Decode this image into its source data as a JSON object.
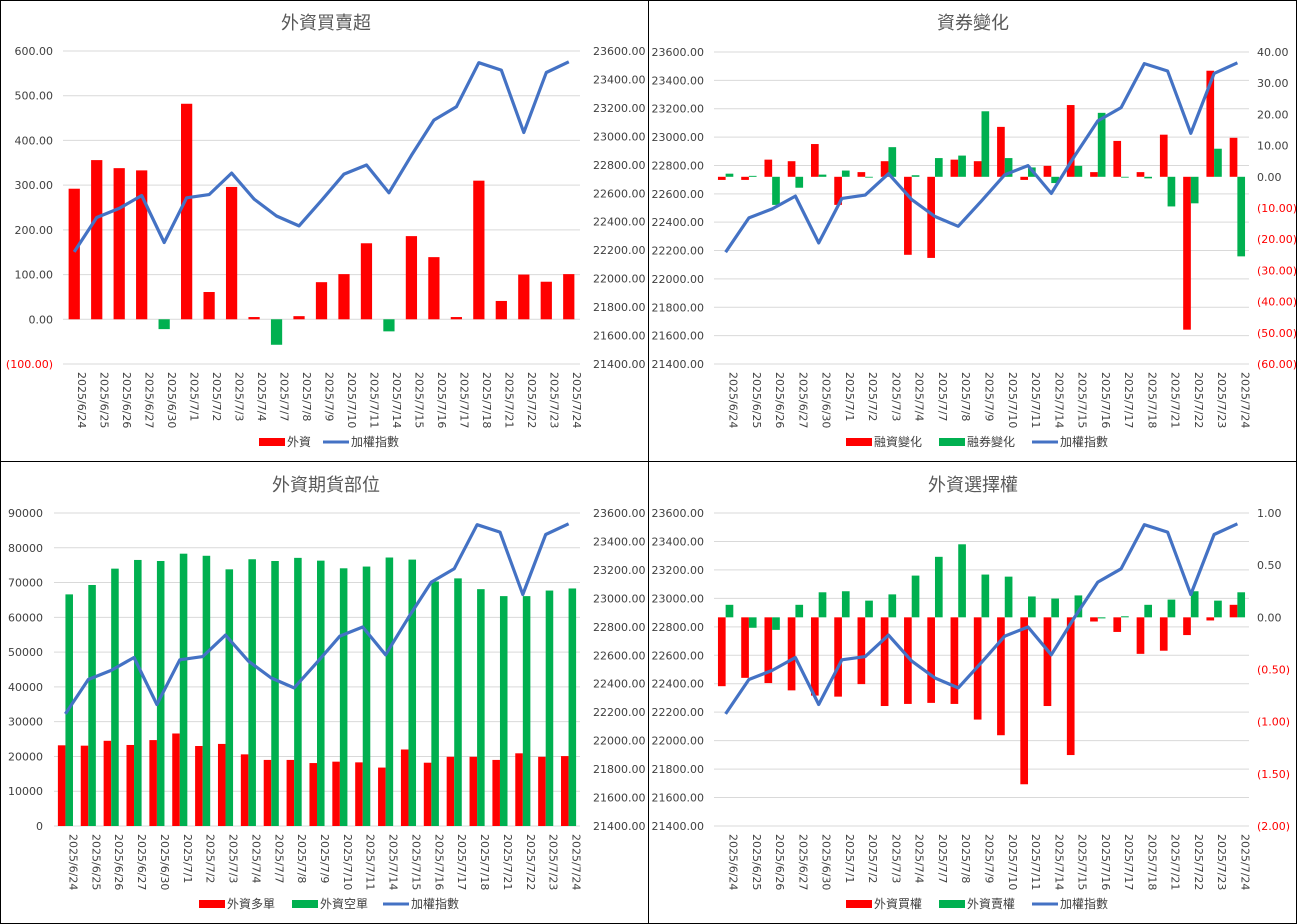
{
  "colors": {
    "red": "#ff0000",
    "green": "#00b050",
    "line": "#4472c4",
    "grid": "#d9d9d9",
    "axis": "#bfbfbf"
  },
  "categories": [
    "2025/6/24",
    "2025/6/25",
    "2025/6/26",
    "2025/6/27",
    "2025/6/30",
    "2025/7/1",
    "2025/7/2",
    "2025/7/3",
    "2025/7/4",
    "2025/7/7",
    "2025/7/8",
    "2025/7/9",
    "2025/7/10",
    "2025/7/11",
    "2025/7/14",
    "2025/7/15",
    "2025/7/16",
    "2025/7/17",
    "2025/7/18",
    "2025/7/21",
    "2025/7/22",
    "2025/7/23",
    "2025/7/24"
  ],
  "chart_data": [
    {
      "type": "bar",
      "title": "外資買賣超",
      "left_axis": {
        "min": -100,
        "max": 600,
        "step": 100,
        "ticks": [
          "(100.00)",
          "0.00",
          "100.00",
          "200.00",
          "300.00",
          "400.00",
          "500.00",
          "600.00"
        ]
      },
      "right_axis": {
        "min": 21400,
        "max": 23600,
        "step": 200,
        "ticks": [
          "21400.00",
          "21600.00",
          "21800.00",
          "22000.00",
          "22200.00",
          "22400.00",
          "22600.00",
          "22800.00",
          "23000.00",
          "23200.00",
          "23400.00",
          "23600.00"
        ]
      },
      "series": [
        {
          "name": "外資",
          "type": "bar",
          "axis": "left",
          "signColor": true,
          "values": [
            292,
            356,
            338,
            333,
            -22,
            482,
            61,
            296,
            5,
            -57,
            7,
            83,
            101,
            170,
            -27,
            186,
            139,
            5,
            310,
            41,
            100,
            84,
            101
          ]
        },
        {
          "name": "加權指數",
          "type": "line",
          "axis": "right",
          "values": [
            22188,
            22430,
            22494,
            22584,
            22254,
            22568,
            22591,
            22742,
            22559,
            22440,
            22371,
            22550,
            22735,
            22799,
            22603,
            22866,
            23114,
            23208,
            23518,
            23466,
            23027,
            23449,
            23524
          ]
        }
      ]
    },
    {
      "type": "bar",
      "title": "資券變化",
      "left_axis": {
        "min": 21400,
        "max": 23600,
        "step": 200,
        "ticks": [
          "21400.00",
          "21600.00",
          "21800.00",
          "22000.00",
          "22200.00",
          "22400.00",
          "22600.00",
          "22800.00",
          "23000.00",
          "23200.00",
          "23400.00",
          "23600.00"
        ]
      },
      "right_axis": {
        "min": -60,
        "max": 40,
        "step": 10,
        "ticks": [
          "(60.00)",
          "(50.00)",
          "(40.00)",
          "(30.00)",
          "(20.00)",
          "(10.00)",
          "0.00",
          "10.00",
          "20.00",
          "30.00",
          "40.00"
        ]
      },
      "series": [
        {
          "name": "融資變化",
          "type": "bar",
          "axis": "right",
          "color": "red",
          "values": [
            -1,
            -1,
            5.5,
            5,
            10.5,
            -9,
            1.5,
            5,
            -25,
            -26,
            5.5,
            5,
            16,
            -1,
            3.5,
            23,
            1.5,
            11.5,
            1.5,
            13.5,
            -49,
            34,
            12.5
          ]
        },
        {
          "name": "融券變化",
          "type": "bar",
          "axis": "right",
          "color": "green",
          "values": [
            1,
            0.3,
            -9,
            -3.5,
            0.7,
            2,
            0,
            9.5,
            0.5,
            6,
            6.8,
            21,
            6,
            3,
            -2,
            3.5,
            20.5,
            0,
            -0.5,
            -9.5,
            -8.5,
            9,
            -25.5
          ]
        },
        {
          "name": "加權指數",
          "type": "line",
          "axis": "left",
          "values": [
            22188,
            22430,
            22494,
            22584,
            22254,
            22568,
            22591,
            22742,
            22559,
            22440,
            22371,
            22550,
            22735,
            22799,
            22603,
            22866,
            23114,
            23208,
            23518,
            23466,
            23027,
            23449,
            23524
          ]
        }
      ]
    },
    {
      "type": "bar",
      "title": "外資期貨部位",
      "left_axis": {
        "min": 0,
        "max": 90000,
        "step": 10000,
        "ticks": [
          "0",
          "10000",
          "20000",
          "30000",
          "40000",
          "50000",
          "60000",
          "70000",
          "80000",
          "90000"
        ]
      },
      "right_axis": {
        "min": 21400,
        "max": 23600,
        "step": 200,
        "ticks": [
          "21400.00",
          "21600.00",
          "21800.00",
          "22000.00",
          "22200.00",
          "22400.00",
          "22600.00",
          "22800.00",
          "23000.00",
          "23200.00",
          "23400.00",
          "23600.00"
        ]
      },
      "series": [
        {
          "name": "外資多單",
          "type": "bar",
          "axis": "left",
          "color": "red",
          "values": [
            23200,
            23100,
            24500,
            23300,
            24700,
            26600,
            23000,
            23600,
            20600,
            19000,
            19000,
            18100,
            18500,
            18300,
            16800,
            22000,
            18200,
            19900,
            19900,
            19000,
            20900,
            19900,
            20100
          ]
        },
        {
          "name": "外資空單",
          "type": "bar",
          "axis": "left",
          "color": "green",
          "values": [
            66600,
            69300,
            74000,
            76500,
            76200,
            78300,
            77700,
            73800,
            76700,
            76200,
            77100,
            76300,
            74100,
            74600,
            77200,
            76600,
            70300,
            71200,
            68100,
            66100,
            66100,
            67700,
            68300
          ]
        },
        {
          "name": "加權指數",
          "type": "line",
          "axis": "right",
          "values": [
            22188,
            22430,
            22494,
            22584,
            22254,
            22568,
            22591,
            22742,
            22559,
            22440,
            22371,
            22550,
            22735,
            22799,
            22603,
            22866,
            23114,
            23208,
            23518,
            23466,
            23027,
            23449,
            23524
          ]
        }
      ]
    },
    {
      "type": "bar",
      "title": "外資選擇權",
      "left_axis": {
        "min": 21400,
        "max": 23600,
        "step": 200,
        "ticks": [
          "21400.00",
          "21600.00",
          "21800.00",
          "22000.00",
          "22200.00",
          "22400.00",
          "22600.00",
          "22800.00",
          "23000.00",
          "23200.00",
          "23400.00",
          "23600.00"
        ]
      },
      "right_axis": {
        "min": -2,
        "max": 1,
        "step": 0.5,
        "ticks": [
          "(2.00)",
          "(1.50)",
          "(1.00)",
          "(0.50)",
          "0.00",
          "0.50",
          "1.00"
        ]
      },
      "series": [
        {
          "name": "外資買權",
          "type": "bar",
          "axis": "right",
          "color": "red",
          "values": [
            -0.66,
            -0.58,
            -0.63,
            -0.7,
            -0.75,
            -0.76,
            -0.64,
            -0.85,
            -0.83,
            -0.82,
            -0.83,
            -0.98,
            -1.13,
            -1.6,
            -0.85,
            -1.32,
            -0.04,
            -0.14,
            -0.35,
            -0.32,
            -0.17,
            -0.03,
            0.12
          ]
        },
        {
          "name": "外資賣權",
          "type": "bar",
          "axis": "right",
          "color": "green",
          "values": [
            0.12,
            -0.1,
            -0.12,
            0.12,
            0.24,
            0.25,
            0.16,
            0.22,
            0.4,
            0.58,
            0.7,
            0.41,
            0.39,
            0.2,
            0.18,
            0.21,
            -0.01,
            0.01,
            0.12,
            0.17,
            0.25,
            0.16,
            0.24
          ]
        },
        {
          "name": "加權指數",
          "type": "line",
          "axis": "left",
          "values": [
            22188,
            22430,
            22494,
            22584,
            22254,
            22568,
            22591,
            22742,
            22559,
            22440,
            22371,
            22550,
            22735,
            22799,
            22603,
            22866,
            23114,
            23208,
            23518,
            23466,
            23027,
            23449,
            23524
          ]
        }
      ]
    }
  ]
}
